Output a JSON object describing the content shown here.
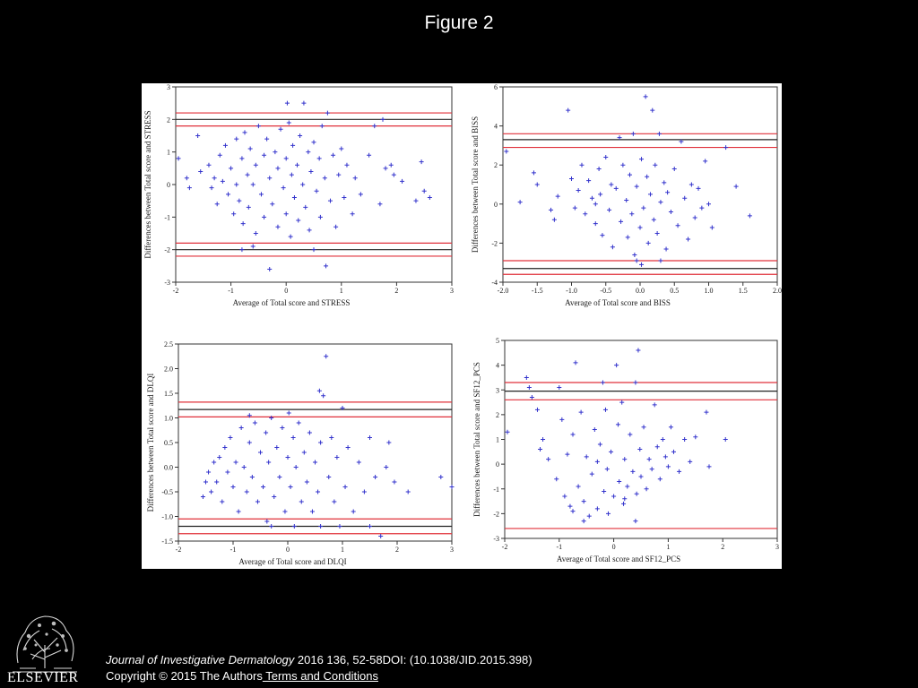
{
  "header": {
    "title": "Figure 2"
  },
  "footer": {
    "journal": "Journal of Investigative Dermatology",
    "citation_rest": " 2016 136, 52-58DOI: (10.1038/JID.2015.398)",
    "copyright": "Copyright © 2015 The Authors",
    "terms_link": " Terms and Conditions",
    "publisher_logo": "ELSEVIER"
  },
  "colors": {
    "background": "#000000",
    "panel": "#ffffff",
    "points": "#3333cc",
    "limit_line": "#e0303a",
    "mean_line": "#222222"
  },
  "chart_data": [
    {
      "type": "scatter",
      "marker": "plus",
      "xlabel": "Average of Total score and STRESS",
      "ylabel": "Differences between Total score and STRESS",
      "xlim": [
        -2,
        3
      ],
      "ylim": [
        -3,
        3
      ],
      "xticks": [
        -2,
        -1,
        0,
        1,
        2,
        3
      ],
      "yticks": [
        -3,
        -2,
        -1,
        0,
        1,
        2,
        3
      ],
      "xtick_labels": [
        "-2",
        "-1",
        "0",
        "1",
        "2",
        "3"
      ],
      "ytick_labels": [
        "-3",
        "-2",
        "-1",
        "0",
        "1",
        "2",
        "3"
      ],
      "red_lines": [
        2.2,
        1.8,
        -1.8,
        -2.2
      ],
      "black_lines": [
        2.0,
        -2.0
      ],
      "points": [
        [
          -1.95,
          0.8
        ],
        [
          -1.8,
          0.2
        ],
        [
          -1.75,
          -0.1
        ],
        [
          -1.6,
          1.5
        ],
        [
          -1.55,
          0.4
        ],
        [
          -1.4,
          0.6
        ],
        [
          -1.3,
          0.2
        ],
        [
          -1.25,
          -0.6
        ],
        [
          -1.2,
          0.9
        ],
        [
          -1.15,
          0.1
        ],
        [
          -1.1,
          1.2
        ],
        [
          -1.05,
          -0.3
        ],
        [
          -1.0,
          0.5
        ],
        [
          -0.95,
          -0.9
        ],
        [
          -0.9,
          1.4
        ],
        [
          -0.9,
          0.0
        ],
        [
          -0.85,
          -0.5
        ],
        [
          -0.8,
          0.8
        ],
        [
          -0.78,
          -1.2
        ],
        [
          -0.75,
          1.6
        ],
        [
          -0.7,
          0.3
        ],
        [
          -0.68,
          -0.7
        ],
        [
          -0.65,
          1.1
        ],
        [
          -0.6,
          0.0
        ],
        [
          -0.55,
          -1.5
        ],
        [
          -0.55,
          0.6
        ],
        [
          -0.5,
          1.8
        ],
        [
          -0.45,
          -0.3
        ],
        [
          -0.4,
          0.9
        ],
        [
          -0.4,
          -1.0
        ],
        [
          -0.35,
          1.4
        ],
        [
          -0.3,
          0.2
        ],
        [
          -0.3,
          -2.6
        ],
        [
          -0.25,
          -0.6
        ],
        [
          -0.2,
          1.0
        ],
        [
          -0.15,
          -1.3
        ],
        [
          -0.15,
          0.5
        ],
        [
          -0.1,
          1.7
        ],
        [
          -0.05,
          -0.1
        ],
        [
          0.0,
          0.8
        ],
        [
          0.0,
          -0.9
        ],
        [
          0.02,
          2.5
        ],
        [
          0.05,
          1.9
        ],
        [
          0.08,
          -1.6
        ],
        [
          0.1,
          0.3
        ],
        [
          0.12,
          1.2
        ],
        [
          0.15,
          -0.4
        ],
        [
          0.2,
          0.6
        ],
        [
          0.22,
          -1.1
        ],
        [
          0.25,
          1.5
        ],
        [
          0.3,
          0.0
        ],
        [
          0.32,
          2.5
        ],
        [
          0.35,
          -0.7
        ],
        [
          0.4,
          1.0
        ],
        [
          0.42,
          -1.4
        ],
        [
          0.45,
          0.4
        ],
        [
          0.5,
          1.3
        ],
        [
          0.55,
          -0.2
        ],
        [
          0.6,
          0.8
        ],
        [
          0.62,
          -1.0
        ],
        [
          0.65,
          1.8
        ],
        [
          0.7,
          0.2
        ],
        [
          0.72,
          -2.5
        ],
        [
          0.75,
          2.2
        ],
        [
          0.8,
          -0.5
        ],
        [
          0.85,
          0.9
        ],
        [
          0.9,
          -1.3
        ],
        [
          0.95,
          0.3
        ],
        [
          1.0,
          1.1
        ],
        [
          1.05,
          -0.4
        ],
        [
          1.1,
          0.6
        ],
        [
          1.2,
          -0.9
        ],
        [
          1.25,
          0.2
        ],
        [
          1.35,
          -0.3
        ],
        [
          1.5,
          0.9
        ],
        [
          1.6,
          1.8
        ],
        [
          1.7,
          -0.6
        ],
        [
          1.75,
          2.0
        ],
        [
          1.8,
          0.5
        ],
        [
          1.95,
          0.3
        ],
        [
          2.1,
          0.1
        ],
        [
          2.35,
          -0.5
        ],
        [
          2.45,
          0.7
        ],
        [
          2.5,
          -0.2
        ],
        [
          2.6,
          -0.4
        ],
        [
          -0.8,
          -2.0
        ],
        [
          -0.6,
          -1.9
        ],
        [
          0.5,
          -2.0
        ],
        [
          1.9,
          0.6
        ],
        [
          -1.35,
          -0.1
        ]
      ]
    },
    {
      "type": "scatter",
      "marker": "plus",
      "xlabel": "Average of Total score and BISS",
      "ylabel": "Differences between Total score and BISS",
      "xlim": [
        -2,
        2
      ],
      "ylim": [
        -4,
        6
      ],
      "xticks": [
        -2,
        -1.5,
        -1,
        -0.5,
        0,
        0.5,
        1,
        1.5,
        2
      ],
      "yticks": [
        -4,
        -2,
        0,
        2,
        4,
        6
      ],
      "xtick_labels": [
        "-2.0",
        "-1.5",
        "-1.0",
        "-0.5",
        "0.0",
        "0.5",
        "1.0",
        "1.5",
        "2.0"
      ],
      "ytick_labels": [
        "-4",
        "-2",
        "0",
        "2",
        "4",
        "6"
      ],
      "red_lines": [
        3.6,
        2.9,
        -2.9,
        -3.6
      ],
      "black_lines": [
        3.3,
        -3.3
      ],
      "points": [
        [
          -1.95,
          2.7
        ],
        [
          -1.75,
          0.1
        ],
        [
          -1.55,
          1.6
        ],
        [
          -1.5,
          1.0
        ],
        [
          -1.3,
          -0.3
        ],
        [
          -1.25,
          -0.8
        ],
        [
          -1.2,
          0.4
        ],
        [
          -1.05,
          4.8
        ],
        [
          -1.0,
          1.3
        ],
        [
          -0.95,
          -0.2
        ],
        [
          -0.9,
          0.7
        ],
        [
          -0.85,
          2.0
        ],
        [
          -0.8,
          -0.5
        ],
        [
          -0.75,
          1.2
        ],
        [
          -0.7,
          0.3
        ],
        [
          -0.65,
          -1.0
        ],
        [
          -0.6,
          1.8
        ],
        [
          -0.58,
          0.5
        ],
        [
          -0.55,
          -1.6
        ],
        [
          -0.5,
          2.4
        ],
        [
          -0.45,
          -0.3
        ],
        [
          -0.42,
          1.0
        ],
        [
          -0.4,
          -2.2
        ],
        [
          -0.35,
          0.8
        ],
        [
          -0.3,
          3.4
        ],
        [
          -0.28,
          -0.9
        ],
        [
          -0.25,
          2.0
        ],
        [
          -0.2,
          0.2
        ],
        [
          -0.18,
          -1.7
        ],
        [
          -0.15,
          1.5
        ],
        [
          -0.12,
          -0.5
        ],
        [
          -0.1,
          3.6
        ],
        [
          -0.08,
          -2.6
        ],
        [
          -0.05,
          0.9
        ],
        [
          0.0,
          -1.2
        ],
        [
          0.02,
          2.3
        ],
        [
          0.05,
          -0.2
        ],
        [
          0.08,
          5.5
        ],
        [
          0.1,
          1.4
        ],
        [
          0.12,
          -2.0
        ],
        [
          0.15,
          0.5
        ],
        [
          0.18,
          4.8
        ],
        [
          0.2,
          -0.8
        ],
        [
          0.22,
          2.0
        ],
        [
          0.25,
          -1.5
        ],
        [
          0.28,
          3.6
        ],
        [
          0.3,
          0.1
        ],
        [
          0.35,
          1.1
        ],
        [
          0.38,
          -2.3
        ],
        [
          0.4,
          0.6
        ],
        [
          0.45,
          -0.4
        ],
        [
          0.5,
          1.8
        ],
        [
          0.55,
          -1.1
        ],
        [
          0.6,
          3.2
        ],
        [
          0.65,
          0.3
        ],
        [
          0.7,
          -1.8
        ],
        [
          0.75,
          1.0
        ],
        [
          0.8,
          -0.7
        ],
        [
          0.85,
          0.8
        ],
        [
          0.9,
          -0.2
        ],
        [
          0.95,
          2.2
        ],
        [
          1.0,
          0.0
        ],
        [
          1.05,
          -1.2
        ],
        [
          1.25,
          2.9
        ],
        [
          1.4,
          0.9
        ],
        [
          1.6,
          -0.6
        ],
        [
          -0.05,
          -2.9
        ],
        [
          0.02,
          -3.1
        ],
        [
          -0.65,
          0.0
        ],
        [
          0.3,
          -2.9
        ]
      ]
    },
    {
      "type": "scatter",
      "marker": "plus",
      "xlabel": "Average of Total score and DLQI",
      "ylabel": "Differences between Total score and DLQI",
      "xlim": [
        -2,
        3
      ],
      "ylim": [
        -1.5,
        2.5
      ],
      "xticks": [
        -2,
        -1,
        0,
        1,
        2,
        3
      ],
      "yticks": [
        -1.5,
        -1.0,
        -0.5,
        0.0,
        0.5,
        1.0,
        1.5,
        2.0,
        2.5
      ],
      "xtick_labels": [
        "-2",
        "-1",
        "0",
        "1",
        "2",
        "3"
      ],
      "ytick_labels": [
        "-1.5",
        "-1.0",
        "-0.5",
        "0.0",
        "0.5",
        "1.0",
        "1.5",
        "2.0",
        "2.5"
      ],
      "red_lines": [
        1.32,
        1.02,
        -1.05,
        -1.35
      ],
      "black_lines": [
        1.17,
        -1.2
      ],
      "points": [
        [
          -1.55,
          -0.6
        ],
        [
          -1.5,
          -0.3
        ],
        [
          -1.45,
          -0.1
        ],
        [
          -1.4,
          -0.5
        ],
        [
          -1.35,
          0.1
        ],
        [
          -1.3,
          -0.3
        ],
        [
          -1.25,
          0.2
        ],
        [
          -1.2,
          -0.7
        ],
        [
          -1.15,
          0.4
        ],
        [
          -1.1,
          -0.1
        ],
        [
          -1.05,
          0.6
        ],
        [
          -1.0,
          -0.4
        ],
        [
          -0.95,
          0.1
        ],
        [
          -0.9,
          -0.9
        ],
        [
          -0.85,
          0.8
        ],
        [
          -0.8,
          0.0
        ],
        [
          -0.75,
          -0.5
        ],
        [
          -0.7,
          0.5
        ],
        [
          -0.65,
          -0.2
        ],
        [
          -0.6,
          0.9
        ],
        [
          -0.55,
          -0.7
        ],
        [
          -0.5,
          0.3
        ],
        [
          -0.45,
          -0.4
        ],
        [
          -0.4,
          0.7
        ],
        [
          -0.38,
          -1.1
        ],
        [
          -0.35,
          0.1
        ],
        [
          -0.3,
          1.0
        ],
        [
          -0.25,
          -0.6
        ],
        [
          -0.2,
          0.4
        ],
        [
          -0.15,
          -0.2
        ],
        [
          -0.1,
          0.8
        ],
        [
          -0.05,
          -0.9
        ],
        [
          0.0,
          0.2
        ],
        [
          0.02,
          1.1
        ],
        [
          0.05,
          -0.4
        ],
        [
          0.1,
          0.6
        ],
        [
          0.12,
          -1.2
        ],
        [
          0.15,
          0.0
        ],
        [
          0.2,
          0.9
        ],
        [
          0.25,
          -0.7
        ],
        [
          0.3,
          0.3
        ],
        [
          0.35,
          -0.3
        ],
        [
          0.4,
          0.7
        ],
        [
          0.45,
          -0.9
        ],
        [
          0.5,
          0.1
        ],
        [
          0.55,
          -0.5
        ],
        [
          0.58,
          1.55
        ],
        [
          0.6,
          0.5
        ],
        [
          0.65,
          1.45
        ],
        [
          0.7,
          2.25
        ],
        [
          0.75,
          -0.2
        ],
        [
          0.8,
          0.6
        ],
        [
          0.85,
          -0.7
        ],
        [
          0.9,
          0.2
        ],
        [
          0.95,
          -1.2
        ],
        [
          1.0,
          1.2
        ],
        [
          1.05,
          -0.4
        ],
        [
          1.1,
          0.4
        ],
        [
          1.2,
          -0.9
        ],
        [
          1.3,
          0.1
        ],
        [
          1.4,
          -0.5
        ],
        [
          1.5,
          0.6
        ],
        [
          1.6,
          -0.2
        ],
        [
          1.7,
          -1.4
        ],
        [
          1.8,
          0.0
        ],
        [
          1.85,
          0.5
        ],
        [
          1.95,
          -0.3
        ],
        [
          2.2,
          -0.5
        ],
        [
          2.8,
          -0.2
        ],
        [
          3.0,
          -0.4
        ],
        [
          -0.3,
          -1.2
        ],
        [
          0.6,
          -1.2
        ],
        [
          1.5,
          -1.2
        ],
        [
          -0.7,
          1.05
        ]
      ]
    },
    {
      "type": "scatter",
      "marker": "plus",
      "xlabel": "Average of Total score and SF12_PCS",
      "ylabel": "Differences between Total score and SF12_PCS",
      "xlim": [
        -2,
        3
      ],
      "ylim": [
        -3,
        5
      ],
      "xticks": [
        -2,
        -1,
        0,
        1,
        2,
        3
      ],
      "yticks": [
        -3,
        -2,
        -1,
        0,
        1,
        2,
        3,
        4,
        5
      ],
      "xtick_labels": [
        "-2",
        "-1",
        "0",
        "1",
        "2",
        "3"
      ],
      "ytick_labels": [
        "-3",
        "-2",
        "-1",
        "0",
        "1",
        "2",
        "3",
        "4",
        "5"
      ],
      "red_lines": [
        3.3,
        2.6,
        -2.6
      ],
      "black_lines": [
        2.95
      ],
      "points": [
        [
          -1.95,
          1.3
        ],
        [
          -1.6,
          3.5
        ],
        [
          -1.55,
          3.1
        ],
        [
          -1.5,
          2.7
        ],
        [
          -1.4,
          2.2
        ],
        [
          -1.35,
          0.6
        ],
        [
          -1.3,
          1.0
        ],
        [
          -1.2,
          0.2
        ],
        [
          -1.05,
          -0.6
        ],
        [
          -1.0,
          3.1
        ],
        [
          -0.95,
          1.8
        ],
        [
          -0.9,
          -1.3
        ],
        [
          -0.85,
          0.4
        ],
        [
          -0.8,
          -1.7
        ],
        [
          -0.75,
          1.2
        ],
        [
          -0.7,
          4.1
        ],
        [
          -0.65,
          -0.9
        ],
        [
          -0.6,
          2.1
        ],
        [
          -0.55,
          -1.5
        ],
        [
          -0.5,
          0.3
        ],
        [
          -0.45,
          -2.1
        ],
        [
          -0.4,
          -0.4
        ],
        [
          -0.35,
          1.4
        ],
        [
          -0.3,
          -1.8
        ],
        [
          -0.25,
          0.8
        ],
        [
          -0.2,
          3.3
        ],
        [
          -0.18,
          -1.1
        ],
        [
          -0.15,
          2.2
        ],
        [
          -0.12,
          -0.2
        ],
        [
          -0.1,
          -2.0
        ],
        [
          -0.05,
          0.5
        ],
        [
          0.0,
          -1.3
        ],
        [
          0.05,
          4.0
        ],
        [
          0.08,
          1.6
        ],
        [
          0.1,
          -0.7
        ],
        [
          0.15,
          2.5
        ],
        [
          0.18,
          -1.6
        ],
        [
          0.2,
          0.2
        ],
        [
          0.25,
          -0.9
        ],
        [
          0.3,
          1.2
        ],
        [
          0.35,
          -0.3
        ],
        [
          0.4,
          3.3
        ],
        [
          0.42,
          -1.2
        ],
        [
          0.45,
          4.6
        ],
        [
          0.48,
          0.6
        ],
        [
          0.5,
          -0.5
        ],
        [
          0.55,
          1.5
        ],
        [
          0.6,
          -1.0
        ],
        [
          0.65,
          0.2
        ],
        [
          0.7,
          -0.2
        ],
        [
          0.75,
          2.4
        ],
        [
          0.8,
          0.7
        ],
        [
          0.85,
          -0.6
        ],
        [
          0.9,
          1.0
        ],
        [
          0.95,
          0.3
        ],
        [
          1.0,
          -0.1
        ],
        [
          1.05,
          1.5
        ],
        [
          1.1,
          0.5
        ],
        [
          1.2,
          -0.3
        ],
        [
          1.3,
          1.0
        ],
        [
          1.4,
          0.1
        ],
        [
          1.5,
          1.1
        ],
        [
          1.7,
          2.1
        ],
        [
          1.75,
          -0.1
        ],
        [
          2.05,
          1.0
        ],
        [
          -0.55,
          -2.3
        ],
        [
          0.4,
          -2.3
        ],
        [
          -0.75,
          -1.9
        ],
        [
          0.2,
          -1.4
        ],
        [
          -0.3,
          0.1
        ]
      ]
    }
  ]
}
